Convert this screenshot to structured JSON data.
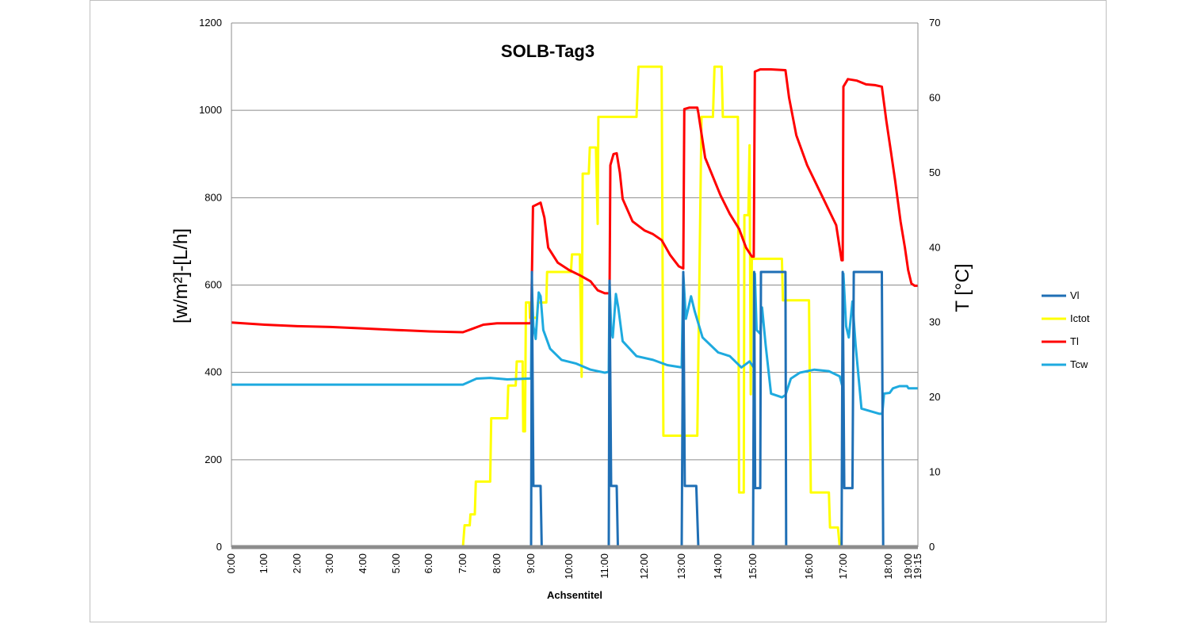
{
  "chart_data": {
    "type": "line",
    "title": "SOLB-Tag3",
    "xlabel": "Achsentitel",
    "ylabel": "[w/m²]-[L/h]",
    "y2label": "T [°C]",
    "ylim": [
      0,
      1200
    ],
    "y2lim": [
      0,
      70
    ],
    "yticks": [
      "0",
      "200",
      "400",
      "600",
      "800",
      "1000",
      "1200"
    ],
    "y2ticks": [
      "0",
      "10",
      "20",
      "30",
      "40",
      "50",
      "60",
      "70"
    ],
    "xticks": [
      {
        "t": 0,
        "label": "0:00"
      },
      {
        "t": 1,
        "label": "1:00"
      },
      {
        "t": 2,
        "label": "2:00"
      },
      {
        "t": 3,
        "label": "3:00"
      },
      {
        "t": 4,
        "label": "4:00"
      },
      {
        "t": 5,
        "label": "5:00"
      },
      {
        "t": 6,
        "label": "6:00"
      },
      {
        "t": 7,
        "label": "7:00"
      },
      {
        "t": 8,
        "label": "8:00"
      },
      {
        "t": 9,
        "label": "9:00"
      },
      {
        "t": 10,
        "label": "10:00"
      },
      {
        "t": 11,
        "label": "11:00"
      },
      {
        "t": 12,
        "label": "12:00"
      },
      {
        "t": 13,
        "label": "13:00"
      },
      {
        "t": 14,
        "label": "14:00"
      },
      {
        "t": 15,
        "label": "15:00"
      },
      {
        "t": 16,
        "label": "16:00"
      },
      {
        "t": 17,
        "label": "17:00"
      },
      {
        "t": 18,
        "label": "18:00"
      },
      {
        "t": 19,
        "label": "19:00"
      },
      {
        "t": 19.25,
        "label": "19:15"
      }
    ],
    "grid": true,
    "legend_position": "right",
    "series": [
      {
        "name": "Vl",
        "color": "#1f6fb5",
        "axis": "left",
        "points": [
          [
            0,
            0
          ],
          [
            9.0,
            0
          ],
          [
            9.02,
            630
          ],
          [
            9.06,
            140
          ],
          [
            9.25,
            140
          ],
          [
            9.28,
            0
          ],
          [
            11.1,
            0
          ],
          [
            11.12,
            610
          ],
          [
            11.16,
            140
          ],
          [
            11.3,
            140
          ],
          [
            11.33,
            0
          ],
          [
            13.3,
            0
          ],
          [
            13.33,
            630
          ],
          [
            13.36,
            140
          ],
          [
            13.58,
            140
          ],
          [
            13.62,
            0
          ],
          [
            15.5,
            0
          ],
          [
            15.53,
            630
          ],
          [
            15.56,
            135
          ],
          [
            15.7,
            135
          ],
          [
            15.72,
            630
          ],
          [
            16.4,
            630
          ],
          [
            16.42,
            0
          ],
          [
            17.95,
            0
          ],
          [
            17.98,
            630
          ],
          [
            18.02,
            135
          ],
          [
            18.2,
            135
          ],
          [
            18.23,
            630
          ],
          [
            18.85,
            630
          ],
          [
            18.88,
            0
          ],
          [
            19.25,
            0
          ]
        ]
      },
      {
        "name": "Ictot",
        "color": "#ffff00",
        "axis": "left",
        "points": [
          [
            0,
            0
          ],
          [
            7.0,
            0
          ],
          [
            7.05,
            50
          ],
          [
            7.2,
            50
          ],
          [
            7.22,
            75
          ],
          [
            7.35,
            75
          ],
          [
            7.38,
            150
          ],
          [
            7.8,
            150
          ],
          [
            7.83,
            295
          ],
          [
            8.3,
            295
          ],
          [
            8.33,
            370
          ],
          [
            8.55,
            370
          ],
          [
            8.58,
            425
          ],
          [
            8.75,
            425
          ],
          [
            8.77,
            265
          ],
          [
            8.82,
            265
          ],
          [
            8.85,
            560
          ],
          [
            8.95,
            560
          ],
          [
            8.97,
            525
          ],
          [
            9.15,
            525
          ],
          [
            9.18,
            560
          ],
          [
            9.4,
            560
          ],
          [
            9.42,
            630
          ],
          [
            10.05,
            630
          ],
          [
            10.08,
            670
          ],
          [
            10.3,
            670
          ],
          [
            10.35,
            390
          ],
          [
            10.38,
            855
          ],
          [
            10.55,
            855
          ],
          [
            10.58,
            915
          ],
          [
            10.75,
            915
          ],
          [
            10.8,
            740
          ],
          [
            10.82,
            985
          ],
          [
            11.8,
            985
          ],
          [
            11.85,
            1100
          ],
          [
            12.6,
            1100
          ],
          [
            12.66,
            255
          ],
          [
            13.6,
            255
          ],
          [
            13.68,
            985
          ],
          [
            13.9,
            985
          ],
          [
            13.93,
            1100
          ],
          [
            14.15,
            1100
          ],
          [
            14.2,
            985
          ],
          [
            14.85,
            985
          ],
          [
            14.9,
            125
          ],
          [
            15.1,
            125
          ],
          [
            15.13,
            760
          ],
          [
            15.3,
            760
          ],
          [
            15.35,
            920
          ],
          [
            15.4,
            350
          ],
          [
            15.45,
            660
          ],
          [
            16.3,
            660
          ],
          [
            16.33,
            565
          ],
          [
            17.05,
            565
          ],
          [
            17.1,
            125
          ],
          [
            17.6,
            125
          ],
          [
            17.63,
            45
          ],
          [
            17.85,
            45
          ],
          [
            17.9,
            0
          ],
          [
            19.25,
            0
          ]
        ]
      },
      {
        "name": "Tl",
        "color": "#ff0000",
        "axis": "right",
        "points": [
          [
            0,
            30
          ],
          [
            1,
            29.7
          ],
          [
            2,
            29.5
          ],
          [
            3,
            29.4
          ],
          [
            4,
            29.2
          ],
          [
            5,
            29.0
          ],
          [
            6,
            28.8
          ],
          [
            7.0,
            28.7
          ],
          [
            7.3,
            29.2
          ],
          [
            7.6,
            29.7
          ],
          [
            8.0,
            29.9
          ],
          [
            8.5,
            29.9
          ],
          [
            9.0,
            29.9
          ],
          [
            9.02,
            36.0
          ],
          [
            9.05,
            45.5
          ],
          [
            9.25,
            46.0
          ],
          [
            9.35,
            44.0
          ],
          [
            9.45,
            40.0
          ],
          [
            9.7,
            38.0
          ],
          [
            10.0,
            37.0
          ],
          [
            10.3,
            36.3
          ],
          [
            10.6,
            35.5
          ],
          [
            10.8,
            34.3
          ],
          [
            11.0,
            33.9
          ],
          [
            11.12,
            33.9
          ],
          [
            11.14,
            51.0
          ],
          [
            11.22,
            52.5
          ],
          [
            11.3,
            52.6
          ],
          [
            11.38,
            50.0
          ],
          [
            11.45,
            46.5
          ],
          [
            11.7,
            43.5
          ],
          [
            12.0,
            42.3
          ],
          [
            12.3,
            41.8
          ],
          [
            12.6,
            41.0
          ],
          [
            12.9,
            39.0
          ],
          [
            13.2,
            37.5
          ],
          [
            13.33,
            37.2
          ],
          [
            13.35,
            58.5
          ],
          [
            13.45,
            58.7
          ],
          [
            13.6,
            58.7
          ],
          [
            13.62,
            58.0
          ],
          [
            13.75,
            52.0
          ],
          [
            14.1,
            47.0
          ],
          [
            14.5,
            44.5
          ],
          [
            14.9,
            42.5
          ],
          [
            15.2,
            40.0
          ],
          [
            15.45,
            38.8
          ],
          [
            15.52,
            38.8
          ],
          [
            15.55,
            63.5
          ],
          [
            15.7,
            63.8
          ],
          [
            16.0,
            63.8
          ],
          [
            16.4,
            63.7
          ],
          [
            16.5,
            60.0
          ],
          [
            16.7,
            55.0
          ],
          [
            17.0,
            51.0
          ],
          [
            17.4,
            47.0
          ],
          [
            17.8,
            43.0
          ],
          [
            17.95,
            38.3
          ],
          [
            17.98,
            38.3
          ],
          [
            18.0,
            61.5
          ],
          [
            18.1,
            62.5
          ],
          [
            18.3,
            62.3
          ],
          [
            18.5,
            61.8
          ],
          [
            18.7,
            61.7
          ],
          [
            18.85,
            61.5
          ],
          [
            18.95,
            57.0
          ],
          [
            19.1,
            53.0
          ],
          [
            19.3,
            49.0
          ],
          [
            19.55,
            43.5
          ],
          [
            19.75,
            40.0
          ],
          [
            19.9,
            37.0
          ],
          [
            20.05,
            35.2
          ],
          [
            20.2,
            34.9
          ],
          [
            20.35,
            34.9
          ]
        ]
      },
      {
        "name": "Tcw",
        "color": "#1eaadf",
        "axis": "right",
        "points": [
          [
            0,
            21.7
          ],
          [
            7.0,
            21.7
          ],
          [
            7.15,
            22.0
          ],
          [
            7.4,
            22.5
          ],
          [
            7.8,
            22.6
          ],
          [
            8.3,
            22.4
          ],
          [
            8.9,
            22.5
          ],
          [
            9.0,
            22.5
          ],
          [
            9.02,
            35.0
          ],
          [
            9.06,
            29.5
          ],
          [
            9.12,
            27.8
          ],
          [
            9.2,
            34.0
          ],
          [
            9.25,
            33.5
          ],
          [
            9.32,
            29.0
          ],
          [
            9.5,
            26.5
          ],
          [
            9.8,
            25.0
          ],
          [
            10.2,
            24.5
          ],
          [
            10.6,
            23.7
          ],
          [
            11.0,
            23.3
          ],
          [
            11.1,
            23.4
          ],
          [
            11.12,
            35.5
          ],
          [
            11.16,
            29.0
          ],
          [
            11.2,
            28.0
          ],
          [
            11.28,
            33.8
          ],
          [
            11.34,
            32.0
          ],
          [
            11.45,
            27.5
          ],
          [
            11.8,
            25.5
          ],
          [
            12.3,
            25.0
          ],
          [
            12.8,
            24.3
          ],
          [
            13.3,
            24.0
          ],
          [
            13.33,
            36.5
          ],
          [
            13.38,
            30.5
          ],
          [
            13.48,
            33.5
          ],
          [
            13.55,
            31.5
          ],
          [
            13.7,
            28.0
          ],
          [
            14.0,
            26.0
          ],
          [
            14.5,
            25.5
          ],
          [
            15.0,
            24.0
          ],
          [
            15.35,
            24.8
          ],
          [
            15.52,
            24.0
          ],
          [
            15.55,
            36.5
          ],
          [
            15.6,
            29.0
          ],
          [
            15.7,
            28.5
          ],
          [
            15.75,
            32.0
          ],
          [
            15.85,
            27.0
          ],
          [
            16.0,
            20.5
          ],
          [
            16.3,
            20.0
          ],
          [
            16.4,
            20.3
          ],
          [
            16.55,
            22.5
          ],
          [
            16.8,
            23.3
          ],
          [
            17.2,
            23.7
          ],
          [
            17.6,
            23.5
          ],
          [
            17.9,
            22.8
          ],
          [
            17.97,
            21.5
          ],
          [
            18.0,
            36.5
          ],
          [
            18.06,
            29.5
          ],
          [
            18.12,
            28.0
          ],
          [
            18.2,
            32.8
          ],
          [
            18.27,
            27.0
          ],
          [
            18.4,
            18.5
          ],
          [
            18.8,
            17.8
          ],
          [
            18.86,
            17.8
          ],
          [
            18.9,
            20.5
          ],
          [
            19.05,
            20.6
          ],
          [
            19.2,
            21.2
          ],
          [
            19.5,
            21.5
          ],
          [
            19.85,
            21.5
          ],
          [
            19.92,
            21.2
          ],
          [
            20.35,
            21.2
          ]
        ]
      }
    ]
  }
}
